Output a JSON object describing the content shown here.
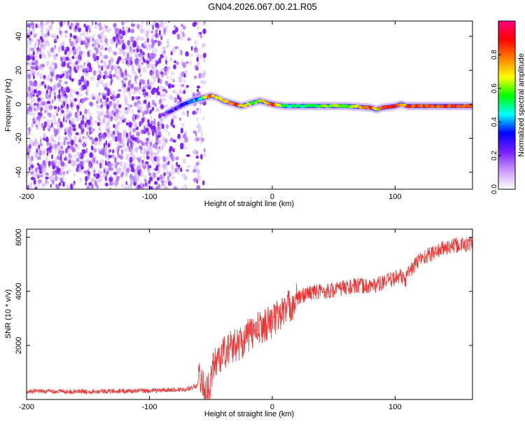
{
  "title": "GN04.2026.067.00.21.R05",
  "chart_data": [
    {
      "type": "heatmap",
      "title": "GN04.2026.067.00.21.R05",
      "xlabel": "Height of straight line (km)",
      "ylabel": "Frequency (Hz)",
      "xlim": [
        -200,
        163
      ],
      "ylim": [
        -50,
        49
      ],
      "xticks": [
        "-200",
        "-100",
        "0",
        "100"
      ],
      "xtick_values": [
        -200,
        -100,
        0,
        100
      ],
      "yticks": [
        "-40",
        "-20",
        "0",
        "20",
        "40"
      ],
      "ytick_values": [
        -40,
        -20,
        0,
        20,
        40
      ],
      "colorbar": {
        "label": "Normalized spectral amplitude",
        "range": [
          0,
          1
        ],
        "ticks": [
          "0.0",
          "0.2",
          "0.4",
          "0.6",
          "0.8"
        ],
        "tick_values": [
          0.0,
          0.2,
          0.4,
          0.6,
          0.8
        ],
        "colors": [
          "#ffffff",
          "#cc99ff",
          "#7a1fff",
          "#0000ff",
          "#00ffff",
          "#00ff00",
          "#ffff00",
          "#ff8000",
          "#ff0000",
          "#ff0080"
        ]
      },
      "noise_region_x": [
        -200,
        -55
      ],
      "ridge_x": [
        -88,
        -80,
        -72,
        -65,
        -60,
        -55,
        -50,
        -45,
        -40,
        -35,
        -30,
        -25,
        -20,
        -15,
        -10,
        -5,
        0,
        10,
        20,
        40,
        60,
        80,
        85,
        90,
        100,
        105,
        110,
        130,
        163
      ],
      "ridge_freq": [
        -6,
        -3,
        0,
        2,
        3,
        4,
        5,
        4,
        2,
        1,
        0,
        -1,
        0,
        1,
        2,
        1,
        0,
        -1,
        -1,
        -1,
        -1,
        -2,
        -3,
        -2,
        -1,
        0,
        -1,
        -1,
        -1
      ],
      "ridge_amplitude": [
        0.15,
        0.25,
        0.3,
        0.35,
        0.4,
        0.75,
        0.8,
        0.65,
        0.7,
        0.8,
        0.85,
        0.7,
        0.6,
        0.55,
        0.65,
        0.7,
        0.9,
        0.5,
        0.5,
        0.55,
        0.6,
        0.85,
        0.7,
        0.85,
        0.9,
        0.75,
        0.8,
        0.85,
        0.85
      ]
    },
    {
      "type": "line",
      "xlabel": "Height of straight line (km)",
      "ylabel": "SNR (10 * v/v)",
      "xlim": [
        -200,
        163
      ],
      "ylim": [
        0,
        6300
      ],
      "xticks": [
        "-200",
        "-100",
        "0",
        "100"
      ],
      "xtick_values": [
        -200,
        -100,
        0,
        100
      ],
      "yticks": [
        "2000",
        "4000",
        "6000"
      ],
      "ytick_values": [
        2000,
        4000,
        6000
      ],
      "color": "#ee3333",
      "series": [
        {
          "name": "SNR",
          "x": [
            -200,
            -150,
            -100,
            -70,
            -62,
            -58,
            -56,
            -52,
            -48,
            -45,
            -40,
            -35,
            -30,
            -25,
            -20,
            -15,
            -10,
            -5,
            0,
            5,
            10,
            15,
            20,
            25,
            30,
            40,
            50,
            60,
            70,
            80,
            90,
            100,
            105,
            108,
            110,
            115,
            120,
            130,
            140,
            150,
            163
          ],
          "y": [
            300,
            300,
            320,
            380,
            500,
            900,
            400,
            350,
            1200,
            1500,
            1700,
            1900,
            2000,
            2150,
            2350,
            2500,
            2650,
            2800,
            2900,
            3100,
            3300,
            3500,
            3700,
            3850,
            3950,
            4000,
            4050,
            4150,
            4200,
            4200,
            4300,
            4500,
            4600,
            4300,
            4700,
            4900,
            5200,
            5400,
            5600,
            5700,
            5750
          ]
        }
      ]
    }
  ]
}
